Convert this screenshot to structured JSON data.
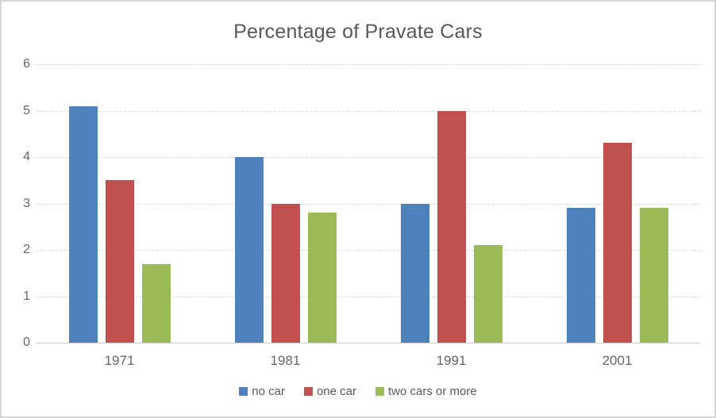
{
  "chart_data": {
    "type": "bar",
    "title": "Percentage of Pravate Cars",
    "categories": [
      "1971",
      "1981",
      "1991",
      "2001"
    ],
    "series": [
      {
        "name": "no car",
        "color": "#4F81BD",
        "values": [
          5.1,
          4.0,
          3.0,
          2.9
        ]
      },
      {
        "name": "one car",
        "color": "#C0504D",
        "values": [
          3.5,
          3.0,
          5.0,
          4.3
        ]
      },
      {
        "name": "two cars or more",
        "color": "#9BBB59",
        "values": [
          1.7,
          2.8,
          2.1,
          2.9
        ]
      }
    ],
    "xlabel": "",
    "ylabel": "",
    "ylim": [
      0,
      6
    ],
    "yticks": [
      0,
      1,
      2,
      3,
      4,
      5,
      6
    ],
    "grid": true,
    "legend_position": "bottom"
  },
  "colors": {
    "title_text": "#595959",
    "axis_text": "#666666",
    "gridline": "#D9D9D9",
    "axis_line": "#C9C9C9",
    "frame_border": "#D6D6D6",
    "background": "#FFFFFF"
  }
}
